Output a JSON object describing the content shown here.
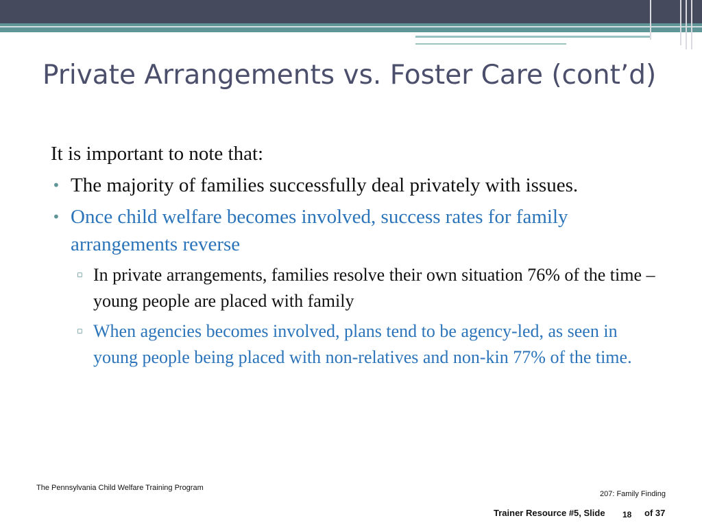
{
  "slide": {
    "title": "Private Arrangements vs. Foster Care (cont’d)",
    "intro": "It is important to note that:",
    "bullets": [
      {
        "text": "The majority of families successfully deal privately with issues.",
        "color": "#111111"
      },
      {
        "text": "Once child welfare becomes involved, success rates for family arrangements reverse",
        "color": "#2b74ba"
      }
    ],
    "sub_bullets": [
      {
        "text": "In private arrangements, families resolve their own situation 76% of the time – young people are placed with family",
        "color": "#111111"
      },
      {
        "text": "When agencies becomes involved, plans tend to be agency-led, as seen in young people being placed with non-relatives and non-kin 77% of the time.",
        "color": "#2b74ba"
      }
    ],
    "bullet_marker": "•",
    "sub_bullet_marker": "▫"
  },
  "footer": {
    "program": "The Pennsylvania Child Welfare Training Program",
    "course": "207: Family Finding",
    "resource": "Trainer Resource #5, Slide",
    "page": "18",
    "total": "of 37"
  },
  "theme": {
    "header_dark": "#454a5c",
    "header_teal": "#5f9597",
    "title_color": "#4b4f6b",
    "accent_blue": "#2b74ba"
  }
}
